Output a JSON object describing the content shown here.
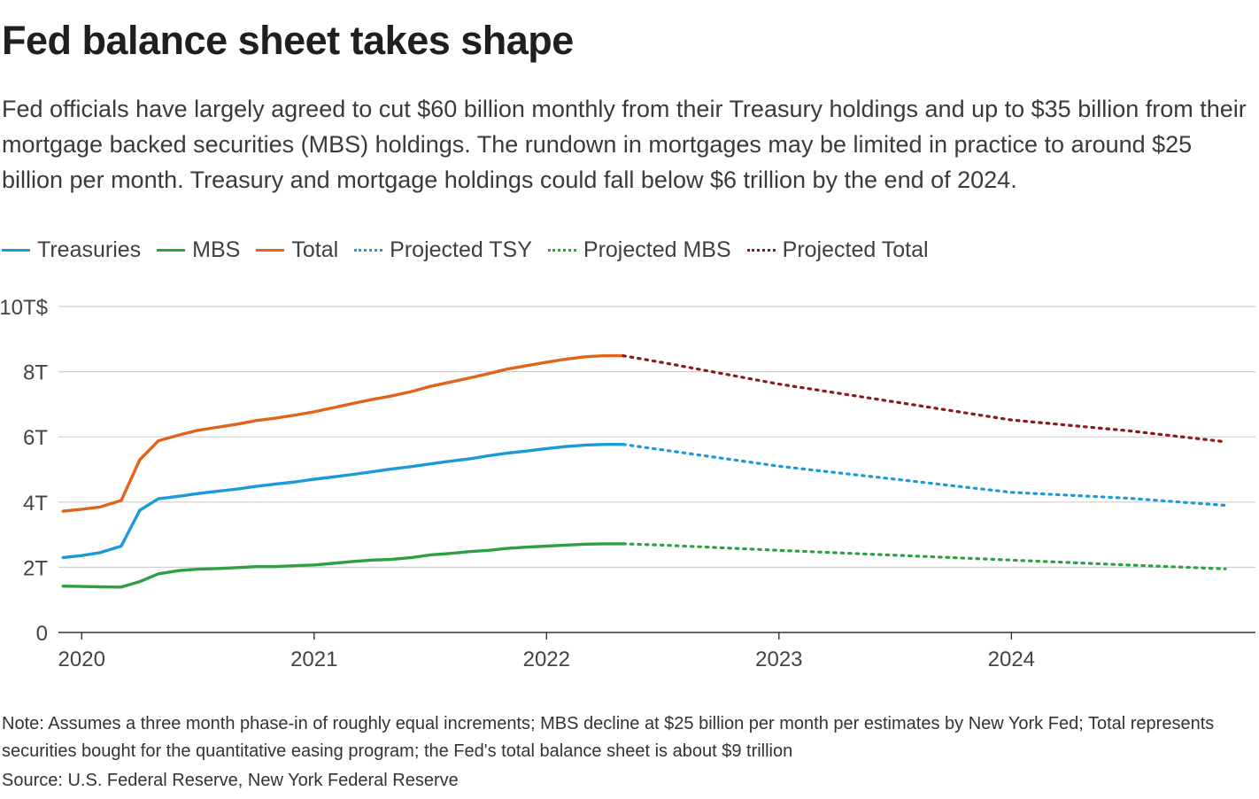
{
  "header": {
    "title": "Fed balance sheet takes shape",
    "subtitle": "Fed officials have largely agreed to cut $60 billion monthly from their Treasury holdings and up to $35 billion from their mortgage backed securities (MBS) holdings. The rundown in mortgages may be limited in practice to around $25 billion per month. Treasury and mortgage holdings could fall below $6 trillion by the end of 2024."
  },
  "legend": [
    {
      "label": "Treasuries",
      "color": "#1a9ad6",
      "style": "solid"
    },
    {
      "label": "MBS",
      "color": "#2ea043",
      "style": "solid"
    },
    {
      "label": "Total",
      "color": "#e0641a",
      "style": "solid"
    },
    {
      "label": "Projected TSY",
      "color": "#1a9ad6",
      "style": "dotted"
    },
    {
      "label": "Projected MBS",
      "color": "#2ea043",
      "style": "dotted"
    },
    {
      "label": "Projected Total",
      "color": "#8b1a1a",
      "style": "dotted"
    }
  ],
  "chart_data": {
    "type": "line",
    "x_unit": "year",
    "xlim": [
      2019.9,
      2025.05
    ],
    "ylim": [
      0,
      10
    ],
    "grid": true,
    "legend_position": "top-left",
    "y_ticks": [
      {
        "value": 0,
        "label": "0"
      },
      {
        "value": 2,
        "label": "2T"
      },
      {
        "value": 4,
        "label": "4T"
      },
      {
        "value": 6,
        "label": "6T"
      },
      {
        "value": 8,
        "label": "8T"
      },
      {
        "value": 10,
        "label": "10T$"
      }
    ],
    "x_ticks": [
      {
        "value": 2020,
        "label": "2020"
      },
      {
        "value": 2021,
        "label": "2021"
      },
      {
        "value": 2022,
        "label": "2022"
      },
      {
        "value": 2023,
        "label": "2023"
      },
      {
        "value": 2024,
        "label": "2024"
      }
    ],
    "series": [
      {
        "name": "Treasuries",
        "color": "#1a9ad6",
        "style": "solid",
        "points": [
          [
            2019.92,
            2.3
          ],
          [
            2020.0,
            2.36
          ],
          [
            2020.08,
            2.45
          ],
          [
            2020.17,
            2.65
          ],
          [
            2020.25,
            3.75
          ],
          [
            2020.33,
            4.1
          ],
          [
            2020.42,
            4.18
          ],
          [
            2020.5,
            4.26
          ],
          [
            2020.58,
            4.33
          ],
          [
            2020.67,
            4.4
          ],
          [
            2020.75,
            4.48
          ],
          [
            2020.83,
            4.55
          ],
          [
            2020.92,
            4.62
          ],
          [
            2021.0,
            4.7
          ],
          [
            2021.08,
            4.77
          ],
          [
            2021.17,
            4.85
          ],
          [
            2021.25,
            4.93
          ],
          [
            2021.33,
            5.01
          ],
          [
            2021.42,
            5.09
          ],
          [
            2021.5,
            5.17
          ],
          [
            2021.58,
            5.25
          ],
          [
            2021.67,
            5.33
          ],
          [
            2021.75,
            5.42
          ],
          [
            2021.83,
            5.5
          ],
          [
            2021.92,
            5.57
          ],
          [
            2022.0,
            5.64
          ],
          [
            2022.08,
            5.7
          ],
          [
            2022.17,
            5.75
          ],
          [
            2022.25,
            5.77
          ],
          [
            2022.33,
            5.77
          ]
        ]
      },
      {
        "name": "MBS",
        "color": "#2ea043",
        "style": "solid",
        "points": [
          [
            2019.92,
            1.42
          ],
          [
            2020.0,
            1.41
          ],
          [
            2020.08,
            1.4
          ],
          [
            2020.17,
            1.39
          ],
          [
            2020.25,
            1.56
          ],
          [
            2020.33,
            1.8
          ],
          [
            2020.42,
            1.9
          ],
          [
            2020.5,
            1.94
          ],
          [
            2020.58,
            1.96
          ],
          [
            2020.67,
            1.99
          ],
          [
            2020.75,
            2.02
          ],
          [
            2020.83,
            2.02
          ],
          [
            2020.92,
            2.05
          ],
          [
            2021.0,
            2.07
          ],
          [
            2021.08,
            2.12
          ],
          [
            2021.17,
            2.18
          ],
          [
            2021.25,
            2.22
          ],
          [
            2021.33,
            2.24
          ],
          [
            2021.42,
            2.3
          ],
          [
            2021.5,
            2.38
          ],
          [
            2021.58,
            2.42
          ],
          [
            2021.67,
            2.48
          ],
          [
            2021.75,
            2.52
          ],
          [
            2021.83,
            2.58
          ],
          [
            2021.92,
            2.62
          ],
          [
            2022.0,
            2.65
          ],
          [
            2022.08,
            2.68
          ],
          [
            2022.17,
            2.71
          ],
          [
            2022.25,
            2.72
          ],
          [
            2022.33,
            2.72
          ]
        ]
      },
      {
        "name": "Total",
        "color": "#e0641a",
        "style": "solid",
        "points": [
          [
            2019.92,
            3.72
          ],
          [
            2020.0,
            3.78
          ],
          [
            2020.08,
            3.85
          ],
          [
            2020.17,
            4.05
          ],
          [
            2020.25,
            5.3
          ],
          [
            2020.33,
            5.88
          ],
          [
            2020.42,
            6.06
          ],
          [
            2020.5,
            6.2
          ],
          [
            2020.58,
            6.29
          ],
          [
            2020.67,
            6.39
          ],
          [
            2020.75,
            6.5
          ],
          [
            2020.83,
            6.57
          ],
          [
            2020.92,
            6.67
          ],
          [
            2021.0,
            6.77
          ],
          [
            2021.08,
            6.89
          ],
          [
            2021.17,
            7.03
          ],
          [
            2021.25,
            7.15
          ],
          [
            2021.33,
            7.25
          ],
          [
            2021.42,
            7.39
          ],
          [
            2021.5,
            7.55
          ],
          [
            2021.58,
            7.67
          ],
          [
            2021.67,
            7.81
          ],
          [
            2021.75,
            7.94
          ],
          [
            2021.83,
            8.08
          ],
          [
            2021.92,
            8.19
          ],
          [
            2022.0,
            8.29
          ],
          [
            2022.08,
            8.38
          ],
          [
            2022.17,
            8.46
          ],
          [
            2022.25,
            8.49
          ],
          [
            2022.33,
            8.49
          ]
        ]
      },
      {
        "name": "Projected TSY",
        "color": "#1a9ad6",
        "style": "dotted",
        "points": [
          [
            2022.33,
            5.77
          ],
          [
            2022.5,
            5.6
          ],
          [
            2023.0,
            5.1
          ],
          [
            2023.5,
            4.7
          ],
          [
            2024.0,
            4.3
          ],
          [
            2024.5,
            4.12
          ],
          [
            2024.92,
            3.9
          ]
        ]
      },
      {
        "name": "Projected MBS",
        "color": "#2ea043",
        "style": "dotted",
        "points": [
          [
            2022.33,
            2.72
          ],
          [
            2022.5,
            2.68
          ],
          [
            2023.0,
            2.52
          ],
          [
            2023.5,
            2.37
          ],
          [
            2024.0,
            2.22
          ],
          [
            2024.5,
            2.07
          ],
          [
            2024.92,
            1.95
          ]
        ]
      },
      {
        "name": "Projected Total",
        "color": "#8b1a1a",
        "style": "dotted",
        "points": [
          [
            2022.33,
            8.49
          ],
          [
            2022.5,
            8.28
          ],
          [
            2023.0,
            7.62
          ],
          [
            2023.5,
            7.07
          ],
          [
            2024.0,
            6.52
          ],
          [
            2024.5,
            6.19
          ],
          [
            2024.92,
            5.85
          ]
        ]
      }
    ]
  },
  "footer": {
    "note": "Note: Assumes a three month phase-in of roughly equal increments; MBS decline at $25 billion per month per estimates by New York Fed; Total represents securities bought for the quantitative easing program; the Fed's total balance sheet is about $9 trillion",
    "source": "Source: U.S. Federal Reserve, New York Federal Reserve"
  }
}
